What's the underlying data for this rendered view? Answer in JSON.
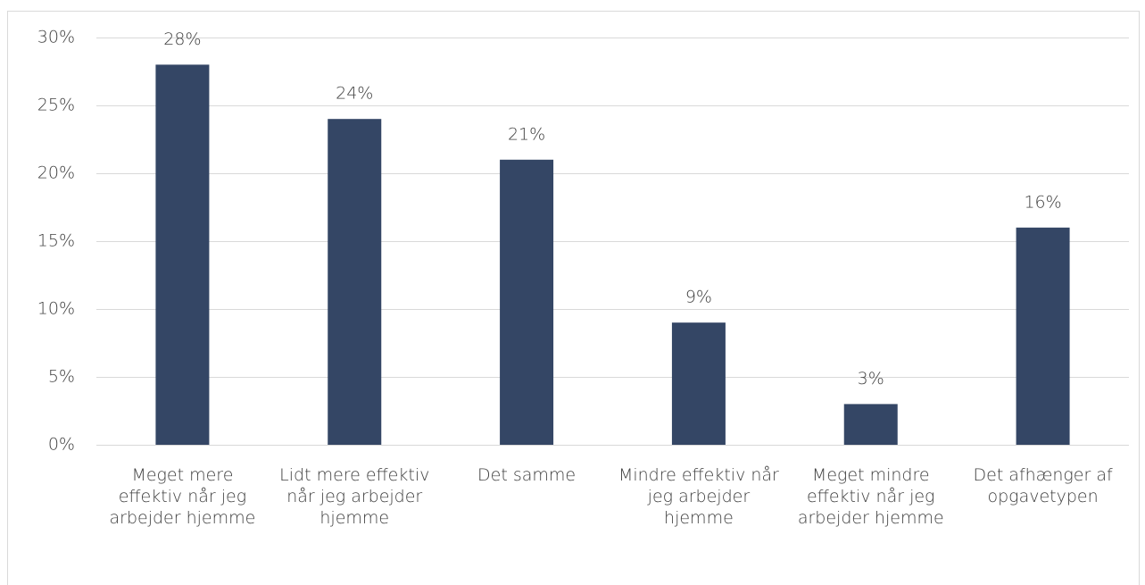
{
  "chart_data": {
    "type": "bar",
    "categories": [
      "Meget mere effektiv når jeg arbejder hjemme",
      "Lidt mere effektiv når jeg arbejder hjemme",
      "Det samme",
      "Mindre effektiv når jeg arbejder hjemme",
      "Meget mindre effektiv når jeg arbejder hjemme",
      "Det afhænger af opgavetypen"
    ],
    "values": [
      28,
      24,
      21,
      9,
      3,
      16
    ],
    "value_labels": [
      "28%",
      "24%",
      "21%",
      "9%",
      "3%",
      "16%"
    ],
    "color": "#344665",
    "ylim": [
      0,
      30
    ],
    "yticks": [
      {
        "value": 0,
        "label": "0%"
      },
      {
        "value": 5,
        "label": "5%"
      },
      {
        "value": 10,
        "label": "10%"
      },
      {
        "value": 15,
        "label": "15%"
      },
      {
        "value": 20,
        "label": "20%"
      },
      {
        "value": 25,
        "label": "25%"
      },
      {
        "value": 30,
        "label": "30%"
      }
    ],
    "grid": true
  }
}
